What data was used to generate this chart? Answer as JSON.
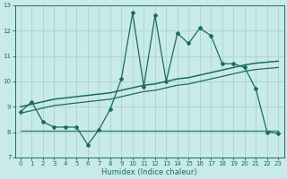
{
  "xlabel": "Humidex (Indice chaleur)",
  "background_color": "#c8eae8",
  "grid_color": "#a8d4d0",
  "line_color": "#1a6b64",
  "xlim": [
    -0.5,
    23.5
  ],
  "ylim": [
    7,
    13
  ],
  "xticks": [
    0,
    1,
    2,
    3,
    4,
    5,
    6,
    7,
    8,
    9,
    10,
    11,
    12,
    13,
    14,
    15,
    16,
    17,
    18,
    19,
    20,
    21,
    22,
    23
  ],
  "yticks": [
    7,
    8,
    9,
    10,
    11,
    12,
    13
  ],
  "line1_x": [
    0,
    1,
    2,
    3,
    4,
    5,
    6,
    7,
    8,
    9,
    10,
    11,
    12,
    13,
    14,
    15,
    16,
    17,
    18,
    19,
    20,
    21,
    22,
    23
  ],
  "line1_y": [
    8.8,
    9.2,
    8.4,
    8.2,
    8.2,
    8.2,
    7.5,
    8.1,
    8.9,
    10.1,
    12.7,
    9.8,
    12.6,
    10.0,
    11.9,
    11.5,
    12.1,
    11.8,
    10.7,
    10.7,
    10.55,
    9.7,
    8.0,
    7.95
  ],
  "line2a_x": [
    0,
    1,
    2,
    3,
    4,
    5,
    6,
    7,
    8,
    9,
    10,
    11,
    12,
    13,
    14,
    15,
    16,
    17,
    18,
    19,
    20,
    21,
    22,
    23
  ],
  "line2a_y": [
    9.0,
    9.1,
    9.2,
    9.3,
    9.35,
    9.4,
    9.45,
    9.5,
    9.55,
    9.65,
    9.75,
    9.85,
    9.9,
    10.0,
    10.1,
    10.15,
    10.25,
    10.35,
    10.45,
    10.55,
    10.65,
    10.72,
    10.76,
    10.8
  ],
  "line2b_x": [
    0,
    1,
    2,
    3,
    4,
    5,
    6,
    7,
    8,
    9,
    10,
    11,
    12,
    13,
    14,
    15,
    16,
    17,
    18,
    19,
    20,
    21,
    22,
    23
  ],
  "line2b_y": [
    8.75,
    8.85,
    8.95,
    9.05,
    9.1,
    9.15,
    9.2,
    9.25,
    9.3,
    9.4,
    9.5,
    9.6,
    9.65,
    9.75,
    9.85,
    9.9,
    10.0,
    10.1,
    10.2,
    10.3,
    10.4,
    10.47,
    10.51,
    10.55
  ],
  "line3_x": [
    0,
    23
  ],
  "line3_y": [
    8.05,
    8.05
  ]
}
